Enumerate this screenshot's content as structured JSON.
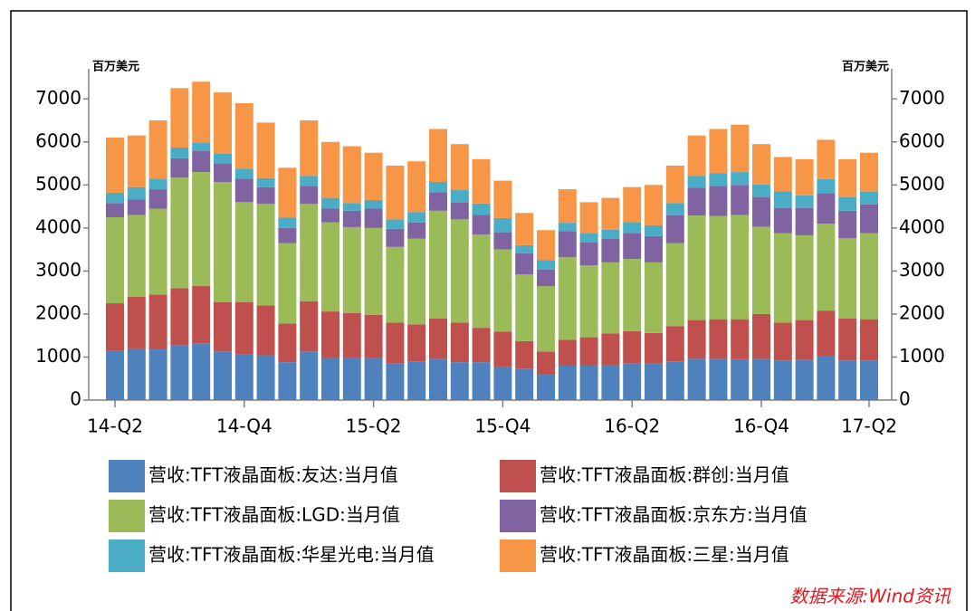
{
  "chart_data": {
    "type": "stacked_bar",
    "y_label": "百万美元",
    "y2_label": "百万美元",
    "source": "数据来源:Wind资讯",
    "categories": [
      "14-Q2",
      null,
      null,
      null,
      null,
      null,
      "14-Q4",
      null,
      null,
      null,
      null,
      null,
      "15-Q2",
      null,
      null,
      null,
      null,
      null,
      "15-Q4",
      null,
      null,
      null,
      null,
      null,
      "16-Q2",
      null,
      null,
      null,
      null,
      null,
      "16-Q4",
      null,
      null,
      null,
      null,
      "17-Q2"
    ],
    "ylim": [
      0,
      7700
    ],
    "yticks": [
      0,
      1000,
      2000,
      3000,
      4000,
      5000,
      6000,
      7000
    ],
    "y2lim": [
      0,
      7700
    ],
    "y2ticks": [
      0,
      1000,
      2000,
      3000,
      4000,
      5000,
      6000,
      7000
    ],
    "series": [
      {
        "name": "营收:TFT液晶面板:友达:当月值",
        "color": "#4f81bd",
        "values": [
          1150,
          1200,
          1180,
          1270,
          1320,
          1130,
          1060,
          1040,
          880,
          1130,
          990,
          990,
          970,
          860,
          900,
          960,
          880,
          880,
          780,
          730,
          600,
          800,
          800,
          820,
          860,
          850,
          900,
          960,
          960,
          950,
          960,
          920,
          930,
          1030,
          920,
          920
        ]
      },
      {
        "name": "营收:TFT液晶面板:群创:当月值",
        "color": "#c0504d",
        "values": [
          1100,
          1200,
          1270,
          1330,
          1330,
          1150,
          1220,
          1160,
          900,
          1170,
          1070,
          1030,
          1010,
          940,
          860,
          940,
          920,
          800,
          810,
          640,
          530,
          600,
          660,
          730,
          740,
          710,
          820,
          900,
          920,
          930,
          1040,
          880,
          930,
          1050,
          980,
          960
        ]
      },
      {
        "name": "营收:TFT液晶面板:LGD:当月值",
        "color": "#9bbb59",
        "values": [
          2000,
          1900,
          2000,
          2570,
          2650,
          2790,
          2320,
          2360,
          1870,
          2260,
          2070,
          2000,
          2020,
          1760,
          1990,
          2500,
          2400,
          2170,
          1910,
          1550,
          1520,
          1920,
          1670,
          1650,
          1680,
          1640,
          1930,
          2430,
          2400,
          2420,
          2030,
          2080,
          1970,
          2020,
          1860,
          2000
        ]
      },
      {
        "name": "营收:TFT液晶面板:京东方:当月值",
        "color": "#8064a2",
        "values": [
          330,
          360,
          450,
          450,
          500,
          430,
          550,
          390,
          350,
          420,
          320,
          380,
          450,
          420,
          380,
          430,
          400,
          460,
          400,
          490,
          380,
          610,
          530,
          560,
          600,
          610,
          650,
          650,
          700,
          700,
          690,
          580,
          630,
          710,
          640,
          670
        ]
      },
      {
        "name": "营收:TFT液晶面板:华星光电:当月值",
        "color": "#4bacc6",
        "values": [
          240,
          290,
          250,
          250,
          190,
          230,
          230,
          210,
          240,
          230,
          250,
          180,
          200,
          220,
          240,
          240,
          280,
          260,
          330,
          190,
          220,
          190,
          220,
          200,
          260,
          250,
          280,
          270,
          290,
          300,
          290,
          390,
          300,
          330,
          320,
          290
        ]
      },
      {
        "name": "营收:TFT液晶面板:三星:当月值",
        "color": "#f79646",
        "values": [
          1280,
          1200,
          1350,
          1380,
          1410,
          1420,
          1520,
          1290,
          1160,
          1290,
          1300,
          1320,
          1100,
          1250,
          1180,
          1230,
          1070,
          1030,
          870,
          750,
          700,
          780,
          720,
          740,
          810,
          940,
          870,
          940,
          1030,
          1100,
          940,
          800,
          840,
          910,
          880,
          910
        ]
      }
    ]
  }
}
